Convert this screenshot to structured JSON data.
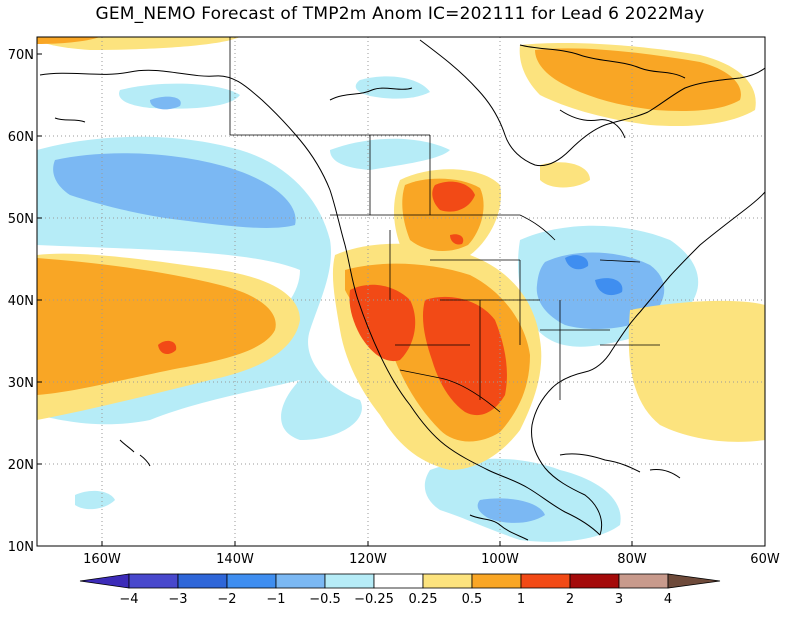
{
  "title": "GEM_NEMO Forecast of TMP2m Anom IC=202111 for Lead 6 2022May",
  "lat_labels": [
    "70N",
    "60N",
    "50N",
    "40N",
    "30N",
    "20N",
    "10N"
  ],
  "lon_labels": [
    "160W",
    "140W",
    "120W",
    "100W",
    "80W",
    "60W"
  ],
  "colorbar": {
    "labels": [
      "-4",
      "-3",
      "-2",
      "-1",
      "-0.5",
      "-0.25",
      "0.25",
      "0.5",
      "1",
      "2",
      "3",
      "4"
    ],
    "colors": [
      "#3c2bb8",
      "#4848cc",
      "#2e66d8",
      "#3f8ef0",
      "#7bb8f3",
      "#b6ecf7",
      "#ffffff",
      "#fce37e",
      "#f9a625",
      "#f24a16",
      "#a40a0a",
      "#c89a8c",
      "#6e4a3a"
    ]
  },
  "colors": {
    "weak_warm": "#fce37e",
    "warm": "#f9a625",
    "hot": "#f24a16",
    "weak_cool": "#b6ecf7",
    "cool": "#7bb8f3",
    "cold": "#3f8ef0"
  }
}
